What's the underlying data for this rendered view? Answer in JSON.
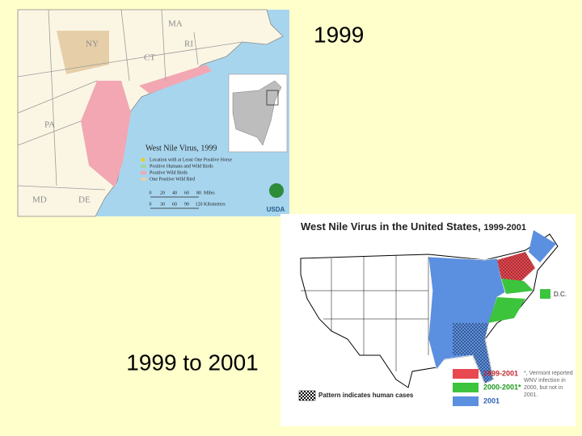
{
  "slide": {
    "label_1999": "1999",
    "label_range": "1999 to 2001"
  },
  "map_1999": {
    "title": "West Nile Virus, 1999",
    "states": [
      "MA",
      "NY",
      "RI",
      "CT",
      "PA",
      "MD",
      "DE"
    ],
    "legend": [
      "Location with at Least One Positive Horse",
      "Positive Humans and Wild Birds",
      "Positive Wild Birds",
      "One Positive Wild Bird"
    ],
    "scale_miles": [
      "0",
      "20",
      "40",
      "60",
      "80"
    ],
    "scale_km": [
      "0",
      "30",
      "60",
      "90",
      "120"
    ],
    "scale_units": [
      "Miles",
      "Kilometers"
    ],
    "logo": "USDA"
  },
  "map_us": {
    "title": "West Nile Virus in the United States,",
    "title_years": "1999-2001",
    "legend": [
      "1999-2001",
      "2000-2001*",
      "2001"
    ],
    "pattern_note": "Pattern indicates human cases",
    "dc": "D.C.",
    "footnote": [
      "*, Vermont reported",
      "WNV infection in",
      "2000, but not in",
      "2001."
    ]
  }
}
